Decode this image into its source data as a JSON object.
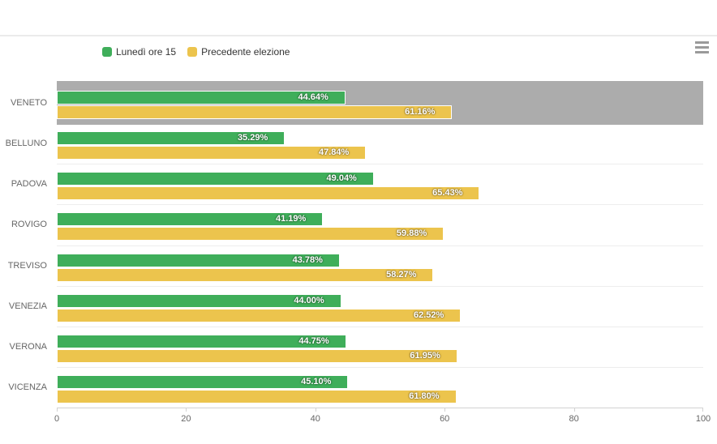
{
  "toolbar": {
    "menu_icon": "hamburger-export-menu"
  },
  "legend": {
    "items": [
      {
        "label": "Lunedì ore 15",
        "color": "#3fae5a"
      },
      {
        "label": "Precedente elezione",
        "color": "#ecc44d"
      }
    ]
  },
  "chart_data": {
    "type": "bar",
    "orientation": "horizontal",
    "title": "",
    "xlabel": "",
    "ylabel": "",
    "categories": [
      "VENETO",
      "BELLUNO",
      "PADOVA",
      "ROVIGO",
      "TREVISO",
      "VENEZIA",
      "VERONA",
      "VICENZA"
    ],
    "series": [
      {
        "name": "Lunedì ore 15",
        "color": "#3fae5a",
        "values": [
          44.64,
          35.29,
          49.04,
          41.19,
          43.78,
          44.0,
          44.75,
          45.1
        ],
        "labels": [
          "44.64%",
          "35.29%",
          "49.04%",
          "41.19%",
          "43.78%",
          "44.00%",
          "44.75%",
          "45.10%"
        ]
      },
      {
        "name": "Precedente elezione",
        "color": "#ecc44d",
        "values": [
          61.16,
          47.84,
          65.43,
          59.88,
          58.27,
          62.52,
          61.95,
          61.8
        ],
        "labels": [
          "61.16%",
          "47.84%",
          "65.43%",
          "59.88%",
          "58.27%",
          "62.52%",
          "61.95%",
          "61.80%"
        ]
      }
    ],
    "xlim": [
      0,
      100
    ],
    "x_ticks": [
      "0",
      "20",
      "40",
      "60",
      "80",
      "100"
    ],
    "grid": "category separator lines",
    "legend_position": "top-left",
    "data_labels": "inside-end, white bold",
    "highlighted_category": "VENETO",
    "highlight_color": "#acacac"
  }
}
